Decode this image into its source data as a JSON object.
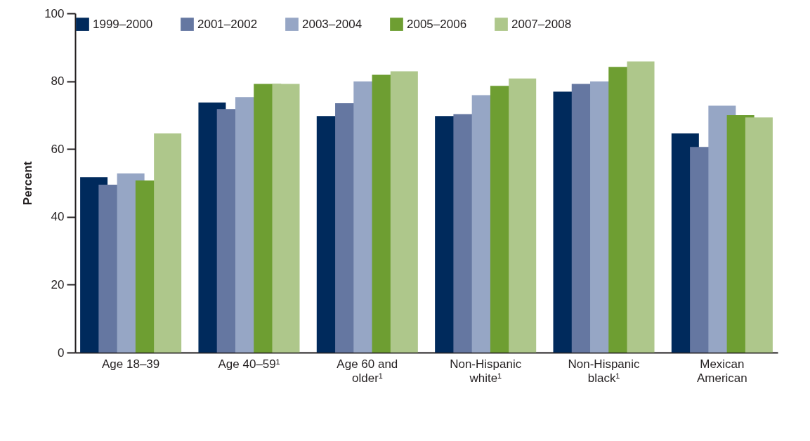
{
  "chart_data": {
    "type": "bar",
    "ylabel": "Percent",
    "categories": [
      "Age 18–39",
      "Age 40–59¹",
      "Age 60 and older¹",
      "Non-Hispanic white¹",
      "Non-Hispanic black¹",
      "Mexican American"
    ],
    "series": [
      {
        "name": "1999–2000",
        "color": "#002a5c",
        "values": [
          51.7,
          73.7,
          69.7,
          69.7,
          76.9,
          64.6
        ]
      },
      {
        "name": "2001–2002",
        "color": "#6577a1",
        "values": [
          49.5,
          71.8,
          73.5,
          70.3,
          79.2,
          60.6
        ]
      },
      {
        "name": "2003–2004",
        "color": "#96a6c5",
        "values": [
          52.8,
          75.3,
          79.9,
          75.9,
          79.9,
          72.8
        ]
      },
      {
        "name": "2005–2006",
        "color": "#6e9e32",
        "values": [
          50.7,
          79.2,
          81.9,
          78.6,
          84.2,
          70.0
        ]
      },
      {
        "name": "2007–2008",
        "color": "#aec78b",
        "values": [
          64.6,
          79.2,
          82.9,
          80.8,
          85.8,
          69.3
        ]
      }
    ],
    "ylim": [
      0,
      100
    ],
    "yticks": [
      0,
      20,
      40,
      60,
      80,
      100
    ],
    "grid": false,
    "legend": "top"
  }
}
